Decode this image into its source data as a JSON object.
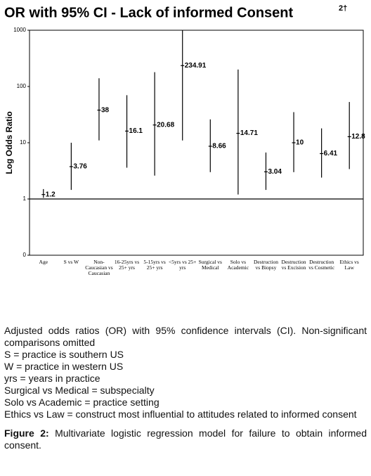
{
  "chart_data": {
    "type": "errorbar",
    "title": "OR with 95% CI - Lack of informed Consent",
    "title_superscript": "2†",
    "y_label": "Log Odds Ratio",
    "log_scale": true,
    "ylim": [
      0.1,
      1000
    ],
    "yticks": [
      {
        "value": 0.1,
        "label": "0"
      },
      1,
      10,
      100,
      1000
    ],
    "reference_line": 1,
    "color": "#000000",
    "categories": [
      "Age",
      "S vs W",
      "Non-Caucasian vs Caucasian",
      "16-25yrs vs 25+ yrs",
      "5-15yrs vs 25+ yrs",
      "<5yrs vs 25+ yrs",
      "Surgical vs Medical",
      "Solo vs Academic",
      "Destruction vs Biopsy",
      "Destruction vs Excision",
      "Destruction vs Cosmetic",
      "Ethics vs Law"
    ],
    "values": [
      1.2,
      3.76,
      38,
      16.1,
      20.68,
      234.91,
      8.66,
      14.71,
      3.04,
      10,
      6.41,
      12.8
    ],
    "ci_low": [
      1.05,
      1.45,
      11,
      3.6,
      2.6,
      11,
      3,
      1.2,
      1.45,
      3,
      2.4,
      3.4
    ],
    "ci_high": [
      1.5,
      10,
      140,
      70,
      180,
      1000,
      26,
      200,
      6.7,
      35,
      18,
      53
    ]
  },
  "caption": {
    "notes": [
      "Adjusted odds ratios (OR) with 95% confidence intervals (CI). Non-significant comparisons omitted",
      "S = practice is southern US",
      "W = practice in western US",
      "yrs = years in practice",
      "Surgical vs Medical = subspecialty",
      "Solo vs Academic = practice setting",
      "Ethics vs Law = construct most influential to attitudes related to informed consent"
    ],
    "figure_label": "Figure 2:",
    "figure_text": "Multivariate logistic regression model for failure to obtain informed consent."
  }
}
